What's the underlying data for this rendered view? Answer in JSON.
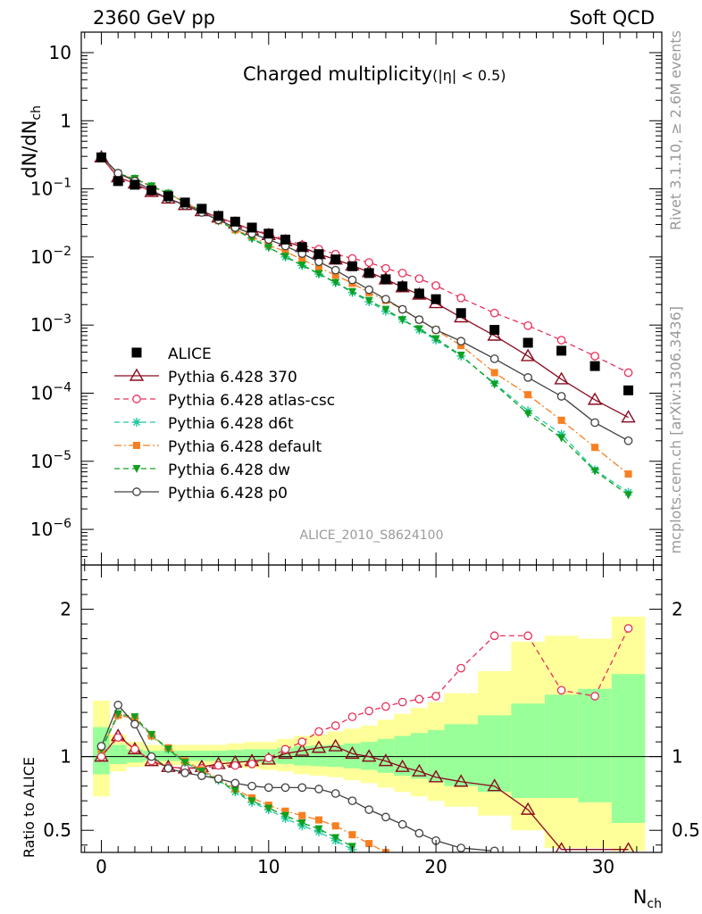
{
  "header": {
    "left": "2360 GeV pp",
    "right": "Soft QCD",
    "side_top": "Rivet 3.1.10, ≥ 2.6M events",
    "side_bottom": "mcplots.cern.ch [arXiv:1306.3436]",
    "analysis_id": "ALICE_2010_S8624100"
  },
  "chart_data": [
    {
      "type": "scatter",
      "panel": "main",
      "title": "Charged multiplicity",
      "title_suffix": "(|η| < 0.5)",
      "ylabel": "dN/dN",
      "ylabel_sub": "ch",
      "yscale": "log",
      "ylim": [
        3e-07,
        20
      ],
      "xlim": [
        -1.2,
        33.5
      ],
      "ytick_labels": [
        {
          "base": "10",
          "exp": "",
          "v": 10
        },
        {
          "base": "1",
          "exp": "",
          "v": 1
        },
        {
          "base": "10",
          "exp": "−1",
          "v": 0.1
        },
        {
          "base": "10",
          "exp": "−2",
          "v": 0.01
        },
        {
          "base": "10",
          "exp": "−3",
          "v": 0.001
        },
        {
          "base": "10",
          "exp": "−4",
          "v": 0.0001
        },
        {
          "base": "10",
          "exp": "−5",
          "v": 1e-05
        },
        {
          "base": "10",
          "exp": "−6",
          "v": 1e-06
        }
      ],
      "legend_position": "lower-left",
      "series": [
        {
          "name": "ALICE",
          "color": "#000000",
          "marker": "filled-square",
          "line": "none",
          "x": [
            0,
            1,
            2,
            3,
            4,
            5,
            6,
            7,
            8,
            9,
            10,
            11,
            12,
            13,
            14,
            15,
            16,
            17,
            18,
            19,
            20,
            21.5,
            23.5,
            25.5,
            27.5,
            29.5,
            31.5
          ],
          "y": [
            0.29,
            0.13,
            0.115,
            0.095,
            0.078,
            0.063,
            0.051,
            0.04,
            0.033,
            0.027,
            0.022,
            0.018,
            0.014,
            0.011,
            0.0092,
            0.0073,
            0.0058,
            0.0047,
            0.0037,
            0.0029,
            0.0024,
            0.0015,
            0.00085,
            0.00055,
            0.00042,
            0.00025,
            0.00011
          ]
        },
        {
          "name": "Pythia 6.428 370",
          "color": "#8b0a1e",
          "marker": "open-triangle",
          "line": "solid",
          "x": [
            0,
            1,
            2,
            3,
            4,
            5,
            6,
            7,
            8,
            9,
            10,
            11,
            12,
            13,
            14,
            15,
            16,
            17,
            18,
            19,
            20,
            21.5,
            23.5,
            25.5,
            27.5,
            29.5,
            31.5
          ],
          "y": [
            0.29,
            0.148,
            0.12,
            0.09,
            0.072,
            0.058,
            0.047,
            0.038,
            0.031,
            0.025,
            0.021,
            0.017,
            0.014,
            0.011,
            0.0092,
            0.0075,
            0.006,
            0.0047,
            0.0036,
            0.0028,
            0.0021,
            0.0013,
            0.0007,
            0.00035,
            0.00016,
            8e-05,
            4.4e-05
          ]
        },
        {
          "name": "Pythia 6.428 atlas-csc",
          "color": "#e8305a",
          "marker": "open-circle",
          "line": "dashed",
          "x": [
            0,
            1,
            2,
            3,
            4,
            5,
            6,
            7,
            8,
            9,
            10,
            11,
            12,
            13,
            14,
            15,
            16,
            17,
            18,
            19,
            20,
            21.5,
            23.5,
            25.5,
            27.5,
            29.5,
            31.5
          ],
          "y": [
            0.29,
            0.15,
            0.12,
            0.09,
            0.072,
            0.058,
            0.047,
            0.038,
            0.031,
            0.025,
            0.022,
            0.018,
            0.015,
            0.013,
            0.011,
            0.0095,
            0.0083,
            0.0068,
            0.0058,
            0.0048,
            0.0038,
            0.0025,
            0.0015,
            0.00098,
            0.0006,
            0.00035,
            0.0002
          ]
        },
        {
          "name": "Pythia 6.428 d6t",
          "color": "#20c8a0",
          "marker": "star",
          "line": "dashed",
          "x": [
            0,
            1,
            2,
            3,
            4,
            5,
            6,
            7,
            8,
            9,
            10,
            11,
            12,
            13,
            14,
            15,
            16,
            17,
            18,
            19,
            20,
            21.5,
            23.5,
            25.5,
            27.5,
            29.5,
            31.5
          ],
          "y": [
            0.3,
            0.165,
            0.14,
            0.108,
            0.086,
            0.063,
            0.047,
            0.034,
            0.025,
            0.019,
            0.014,
            0.01,
            0.0075,
            0.0056,
            0.0042,
            0.003,
            0.0022,
            0.0016,
            0.0012,
            0.00085,
            0.0006,
            0.00035,
            0.00014,
            5.5e-05,
            2.5e-05,
            7.5e-06,
            3.5e-06
          ]
        },
        {
          "name": "Pythia 6.428 default",
          "color": "#f77f20",
          "marker": "filled-square-small",
          "line": "dashdot",
          "x": [
            0,
            1,
            2,
            3,
            4,
            5,
            6,
            7,
            8,
            9,
            10,
            11,
            12,
            13,
            14,
            15,
            16,
            17,
            18,
            19,
            20,
            21.5,
            23.5,
            25.5,
            27.5,
            29.5,
            31.5
          ],
          "y": [
            0.3,
            0.165,
            0.14,
            0.108,
            0.086,
            0.063,
            0.047,
            0.034,
            0.025,
            0.02,
            0.015,
            0.012,
            0.0092,
            0.007,
            0.0054,
            0.0041,
            0.003,
            0.0023,
            0.0017,
            0.0012,
            0.00085,
            0.0005,
            0.0002,
            9.5e-05,
            4e-05,
            1.6e-05,
            6.5e-06
          ]
        },
        {
          "name": "Pythia 6.428 dw",
          "color": "#10a020",
          "marker": "filled-triangle-down",
          "line": "dashed",
          "x": [
            0,
            1,
            2,
            3,
            4,
            5,
            6,
            7,
            8,
            9,
            10,
            11,
            12,
            13,
            14,
            15,
            16,
            17,
            18,
            19,
            20,
            21.5,
            23.5,
            25.5,
            27.5,
            29.5,
            31.5
          ],
          "y": [
            0.3,
            0.168,
            0.142,
            0.11,
            0.086,
            0.063,
            0.047,
            0.034,
            0.025,
            0.0185,
            0.0138,
            0.0102,
            0.0076,
            0.0057,
            0.0042,
            0.0031,
            0.0023,
            0.0017,
            0.0012,
            0.00088,
            0.00063,
            0.00036,
            0.000135,
            5e-05,
            2.2e-05,
            7.2e-06,
            3.2e-06
          ]
        },
        {
          "name": "Pythia 6.428 p0",
          "color": "#404040",
          "marker": "open-circle",
          "line": "solid",
          "x": [
            0,
            1,
            2,
            3,
            4,
            5,
            6,
            7,
            8,
            9,
            10,
            11,
            12,
            13,
            14,
            15,
            16,
            17,
            18,
            19,
            20,
            21.5,
            23.5,
            25.5,
            27.5,
            29.5,
            31.5
          ],
          "y": [
            0.3,
            0.17,
            0.13,
            0.095,
            0.072,
            0.057,
            0.045,
            0.035,
            0.027,
            0.022,
            0.018,
            0.0145,
            0.0112,
            0.0085,
            0.0064,
            0.0046,
            0.0033,
            0.0024,
            0.0017,
            0.0012,
            0.00085,
            0.00058,
            0.00032,
            0.00017,
            9e-05,
            3.7e-05,
            2e-05
          ]
        }
      ]
    },
    {
      "type": "scatter",
      "panel": "ratio",
      "ylabel": "Ratio to ALICE",
      "xlabel": "N",
      "xlabel_sub": "ch",
      "ylim": [
        0.35,
        2.3
      ],
      "xlim": [
        -1.2,
        33.5
      ],
      "xticks": [
        0,
        10,
        20,
        30
      ],
      "yticks": [
        0.5,
        1,
        2
      ],
      "reference_line": 1.0,
      "uncertainty_bands": {
        "x_edges": [
          -0.5,
          0.5,
          1.5,
          2.5,
          3.5,
          4.5,
          5.5,
          6.5,
          7.5,
          8.5,
          9.5,
          10.5,
          11.5,
          12.5,
          13.5,
          14.5,
          15.5,
          16.5,
          17.5,
          18.5,
          19.5,
          20.5,
          22.5,
          24.5,
          26.5,
          28.5,
          30.5,
          32.5
        ],
        "inner_lo": [
          0.88,
          0.95,
          0.96,
          0.97,
          0.97,
          0.97,
          0.97,
          0.97,
          0.965,
          0.96,
          0.955,
          0.95,
          0.94,
          0.935,
          0.93,
          0.92,
          0.91,
          0.89,
          0.87,
          0.85,
          0.83,
          0.8,
          0.76,
          0.72,
          0.72,
          0.69,
          0.55
        ],
        "inner_hi": [
          1.2,
          1.08,
          1.05,
          1.04,
          1.04,
          1.04,
          1.04,
          1.04,
          1.045,
          1.05,
          1.05,
          1.06,
          1.07,
          1.075,
          1.08,
          1.09,
          1.1,
          1.12,
          1.14,
          1.16,
          1.18,
          1.22,
          1.28,
          1.36,
          1.42,
          1.46,
          1.56
        ],
        "outer_lo": [
          0.73,
          0.9,
          0.93,
          0.94,
          0.94,
          0.94,
          0.94,
          0.94,
          0.93,
          0.92,
          0.91,
          0.9,
          0.88,
          0.87,
          0.86,
          0.84,
          0.82,
          0.79,
          0.76,
          0.73,
          0.7,
          0.66,
          0.6,
          0.5,
          0.38,
          0.38,
          0.36
        ],
        "outer_hi": [
          1.38,
          1.15,
          1.1,
          1.08,
          1.08,
          1.08,
          1.08,
          1.08,
          1.09,
          1.1,
          1.1,
          1.12,
          1.14,
          1.15,
          1.17,
          1.19,
          1.21,
          1.25,
          1.29,
          1.33,
          1.37,
          1.43,
          1.58,
          1.78,
          1.82,
          1.8,
          1.95
        ]
      },
      "series": [
        {
          "name": "Pythia 6.428 370",
          "color": "#8b0a1e",
          "marker": "open-triangle",
          "line": "solid",
          "x": [
            0,
            1,
            2,
            3,
            4,
            5,
            6,
            7,
            8,
            9,
            10,
            11,
            12,
            13,
            14,
            15,
            16,
            17,
            18,
            19,
            20,
            21.5,
            23.5,
            25.5,
            27.5,
            31.5
          ],
          "y": [
            1.0,
            1.14,
            1.05,
            0.97,
            0.93,
            0.92,
            0.93,
            0.95,
            0.96,
            0.97,
            0.98,
            1.02,
            1.04,
            1.06,
            1.07,
            1.02,
            1.0,
            0.97,
            0.93,
            0.9,
            0.86,
            0.83,
            0.8,
            0.64,
            0.37,
            0.37
          ]
        },
        {
          "name": "Pythia 6.428 atlas-csc",
          "color": "#e8305a",
          "marker": "open-circle",
          "line": "dashed",
          "x": [
            0,
            1,
            2,
            3,
            4,
            5,
            6,
            7,
            8,
            9,
            10,
            11,
            12,
            13,
            14,
            15,
            16,
            17,
            18,
            19,
            20,
            21.5,
            23.5,
            25.5,
            27.5,
            29.5,
            31.5
          ],
          "y": [
            1.0,
            1.13,
            1.05,
            0.97,
            0.93,
            0.92,
            0.92,
            0.94,
            0.94,
            0.95,
            0.99,
            1.05,
            1.1,
            1.17,
            1.21,
            1.27,
            1.31,
            1.34,
            1.37,
            1.39,
            1.41,
            1.6,
            1.82,
            1.82,
            1.45,
            1.41,
            1.87
          ]
        },
        {
          "name": "Pythia 6.428 d6t",
          "color": "#20c8a0",
          "marker": "star",
          "line": "dashed",
          "x": [
            0,
            1,
            2,
            3,
            4,
            5,
            6,
            7,
            8,
            9,
            10,
            11,
            12,
            13,
            14,
            15
          ],
          "y": [
            1.05,
            1.28,
            1.26,
            1.14,
            1.05,
            0.96,
            0.9,
            0.84,
            0.76,
            0.69,
            0.64,
            0.58,
            0.53,
            0.49,
            0.43,
            0.37
          ]
        },
        {
          "name": "Pythia 6.428 default",
          "color": "#f77f20",
          "marker": "filled-square-small",
          "line": "dashdot",
          "x": [
            0,
            1,
            2,
            3,
            4,
            5,
            6,
            7,
            8,
            9,
            10,
            11,
            12,
            13,
            14,
            15,
            16,
            17
          ],
          "y": [
            1.05,
            1.28,
            1.26,
            1.14,
            1.06,
            0.97,
            0.91,
            0.85,
            0.78,
            0.72,
            0.67,
            0.63,
            0.6,
            0.57,
            0.53,
            0.47,
            0.41,
            0.35
          ]
        },
        {
          "name": "Pythia 6.428 dw",
          "color": "#10a020",
          "marker": "filled-triangle-down",
          "line": "dashed",
          "x": [
            0,
            1,
            2,
            3,
            4,
            5,
            6,
            7,
            8,
            9,
            10,
            11,
            12,
            13,
            14,
            15
          ],
          "y": [
            1.05,
            1.29,
            1.27,
            1.15,
            1.05,
            0.96,
            0.9,
            0.84,
            0.77,
            0.7,
            0.65,
            0.6,
            0.55,
            0.51,
            0.45,
            0.39
          ]
        },
        {
          "name": "Pythia 6.428 p0",
          "color": "#404040",
          "marker": "open-circle",
          "line": "solid",
          "x": [
            0,
            1,
            2,
            3,
            4,
            5,
            6,
            7,
            8,
            9,
            10,
            11,
            12,
            13,
            14,
            15,
            16,
            17,
            18,
            19,
            20,
            21.5,
            23.5
          ],
          "y": [
            1.07,
            1.35,
            1.22,
            1.0,
            0.92,
            0.89,
            0.87,
            0.85,
            0.82,
            0.8,
            0.79,
            0.79,
            0.79,
            0.78,
            0.75,
            0.7,
            0.64,
            0.59,
            0.54,
            0.48,
            0.43,
            0.38,
            0.36
          ]
        }
      ]
    }
  ]
}
